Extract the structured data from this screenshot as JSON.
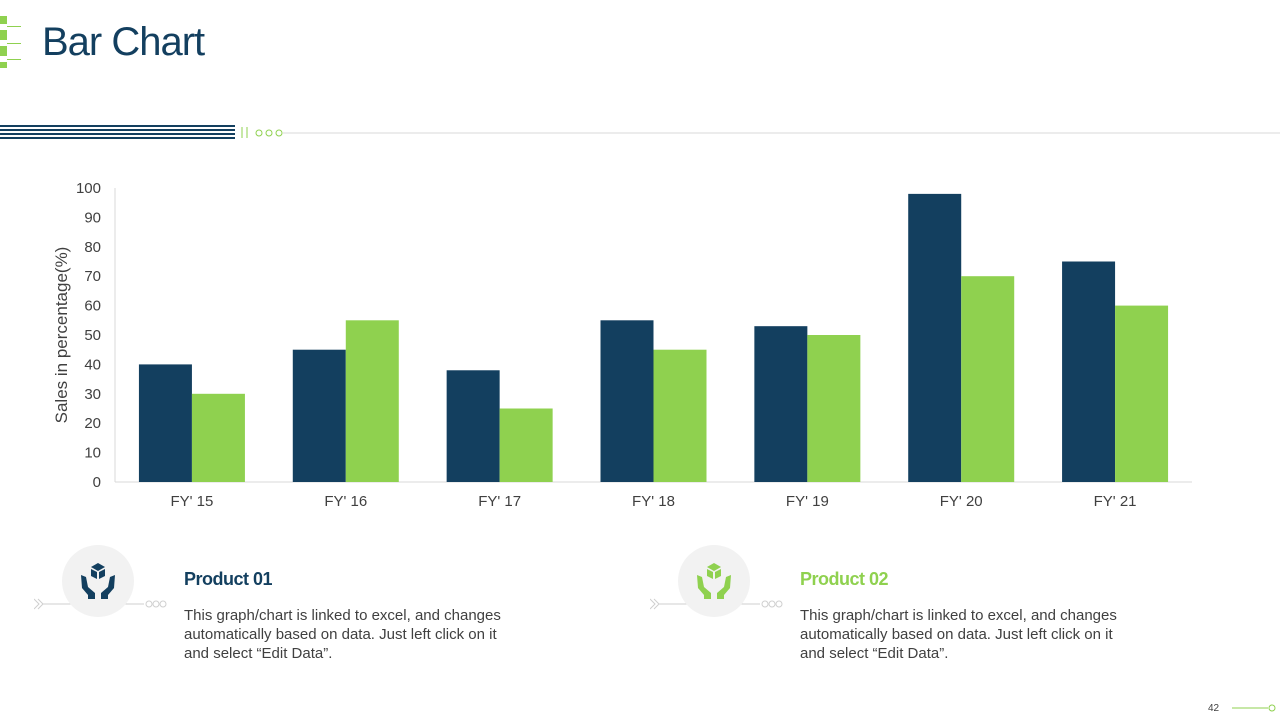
{
  "title": "Bar Chart",
  "chart_data": {
    "type": "bar",
    "title": "",
    "xlabel": "",
    "ylabel": "Sales in percentage(%)",
    "ylim": [
      0,
      100
    ],
    "yticks": [
      "0",
      "10",
      "20",
      "30",
      "40",
      "50",
      "60",
      "70",
      "80",
      "90",
      "100"
    ],
    "categories": [
      "FY' 15",
      "FY' 16",
      "FY' 17",
      "FY' 18",
      "FY' 19",
      "FY' 20",
      "FY' 21"
    ],
    "series": [
      {
        "name": "Product 01",
        "color": "#133f5f",
        "values": [
          40,
          45,
          38,
          55,
          53,
          98,
          75
        ]
      },
      {
        "name": "Product 02",
        "color": "#8fd14f",
        "values": [
          30,
          55,
          25,
          45,
          50,
          70,
          60
        ]
      }
    ],
    "grid": false,
    "legend": "none"
  },
  "products": [
    {
      "title": "Product 01",
      "icon": "hands-cubes-icon",
      "color": "#133f5f",
      "text": "This graph/chart is linked to excel, and changes automatically based on data. Just left click on it and select “Edit Data”."
    },
    {
      "title": "Product 02",
      "icon": "hands-cubes-icon",
      "color": "#8fd14f",
      "text": "This graph/chart is linked to excel, and changes automatically based on data. Just left click on it and select “Edit Data”."
    }
  ],
  "page_number": "42",
  "colors": {
    "navy": "#133f5f",
    "green": "#8fd14f",
    "text": "#404040"
  }
}
